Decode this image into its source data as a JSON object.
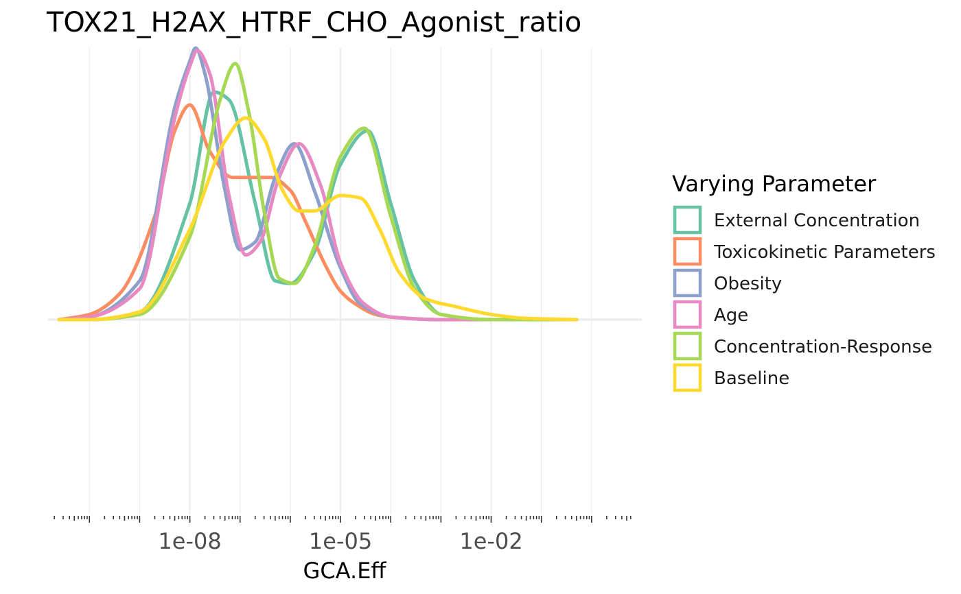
{
  "chart_data": {
    "type": "line",
    "title": "TOX21_H2AX_HTRF_CHO_Agonist_ratio",
    "xlabel": "GCA.Eff",
    "ylabel": "",
    "x_scale": "log10",
    "xlim": [
      1.5e-11,
      10.0
    ],
    "x_ticks": [
      {
        "value": 1e-08,
        "label": "1e-08"
      },
      {
        "value": 1e-05,
        "label": "1e-05"
      },
      {
        "value": 0.01,
        "label": "1e-02"
      }
    ],
    "grid": true,
    "legend": {
      "title": "Varying Parameter",
      "position": "right",
      "entries": [
        "External Concentration",
        "Toxicokinetic Parameters",
        "Obesity",
        "Age",
        "Concentration-Response",
        "Baseline"
      ]
    },
    "series": [
      {
        "name": "External Concentration",
        "color": "#66c2a5",
        "x": [
          2.5e-11,
          1e-10,
          1e-09,
          1e-08,
          3e-08,
          6e-08,
          2e-07,
          5e-07,
          1e-06,
          3e-06,
          1e-05,
          3.5e-05,
          0.0001,
          0.0003,
          0.001,
          0.01,
          0.5
        ],
        "y": [
          0.0,
          0.0,
          0.03,
          0.45,
          0.88,
          0.85,
          0.45,
          0.15,
          0.14,
          0.26,
          0.6,
          0.73,
          0.45,
          0.15,
          0.02,
          0.0,
          0.0
        ]
      },
      {
        "name": "Toxicokinetic Parameters",
        "color": "#fc8d62",
        "x": [
          2.5e-11,
          1e-10,
          4e-10,
          2e-09,
          5e-09,
          1e-08,
          2.5e-08,
          7e-08,
          1.5e-07,
          4e-07,
          1e-06,
          2e-06,
          5e-06,
          1e-05,
          2e-05,
          5e-05,
          0.0001,
          0.001,
          0.01,
          0.5
        ],
        "y": [
          0.0,
          0.02,
          0.1,
          0.4,
          0.73,
          0.83,
          0.65,
          0.55,
          0.55,
          0.55,
          0.5,
          0.38,
          0.21,
          0.11,
          0.06,
          0.02,
          0.01,
          0.0,
          0.0,
          0.0
        ]
      },
      {
        "name": "Obesity",
        "color": "#8da0cb",
        "x": [
          2.5e-11,
          1e-10,
          1e-09,
          5e-09,
          1e-08,
          1.3e-08,
          2e-08,
          5e-08,
          1e-07,
          2e-07,
          5e-07,
          1.2e-06,
          3e-06,
          1e-05,
          2.5e-05,
          0.0001,
          0.001,
          0.5
        ],
        "y": [
          0.0,
          0.01,
          0.15,
          0.82,
          1.0,
          1.05,
          0.95,
          0.5,
          0.27,
          0.3,
          0.55,
          0.68,
          0.5,
          0.2,
          0.06,
          0.01,
          0.0,
          0.0
        ]
      },
      {
        "name": "Age",
        "color": "#e78ac3",
        "x": [
          2.5e-11,
          1e-10,
          1e-09,
          5e-09,
          1e-08,
          1.4e-08,
          2.5e-08,
          6e-08,
          1.3e-07,
          2.5e-07,
          6e-07,
          1.5e-06,
          4e-06,
          1e-05,
          3e-05,
          0.0001,
          0.001,
          0.5
        ],
        "y": [
          0.0,
          0.01,
          0.12,
          0.78,
          0.98,
          1.04,
          0.95,
          0.48,
          0.25,
          0.3,
          0.55,
          0.68,
          0.52,
          0.22,
          0.06,
          0.01,
          0.0,
          0.0
        ]
      },
      {
        "name": "Concentration-Response",
        "color": "#a6d854",
        "x": [
          2.5e-11,
          1e-10,
          1e-09,
          1e-08,
          4e-08,
          8e-08,
          1.5e-07,
          3e-07,
          6e-07,
          1.2e-06,
          3e-06,
          1e-05,
          3e-05,
          0.0001,
          0.0003,
          0.001,
          0.01,
          0.5
        ],
        "y": [
          0.0,
          0.0,
          0.02,
          0.32,
          0.85,
          0.99,
          0.8,
          0.42,
          0.16,
          0.14,
          0.28,
          0.63,
          0.74,
          0.4,
          0.12,
          0.02,
          0.0,
          0.0
        ]
      },
      {
        "name": "Baseline",
        "color": "#ffd92f",
        "x": [
          2.5e-11,
          1e-10,
          1e-09,
          1e-08,
          5e-08,
          1.3e-07,
          3e-07,
          7e-07,
          1.5e-06,
          3e-06,
          1e-05,
          2.5e-05,
          6e-05,
          0.00015,
          0.0005,
          0.002,
          0.01,
          0.05,
          0.5
        ],
        "y": [
          0.0,
          0.0,
          0.03,
          0.35,
          0.69,
          0.78,
          0.7,
          0.5,
          0.42,
          0.42,
          0.48,
          0.47,
          0.35,
          0.18,
          0.08,
          0.05,
          0.02,
          0.005,
          0.0
        ]
      }
    ]
  }
}
